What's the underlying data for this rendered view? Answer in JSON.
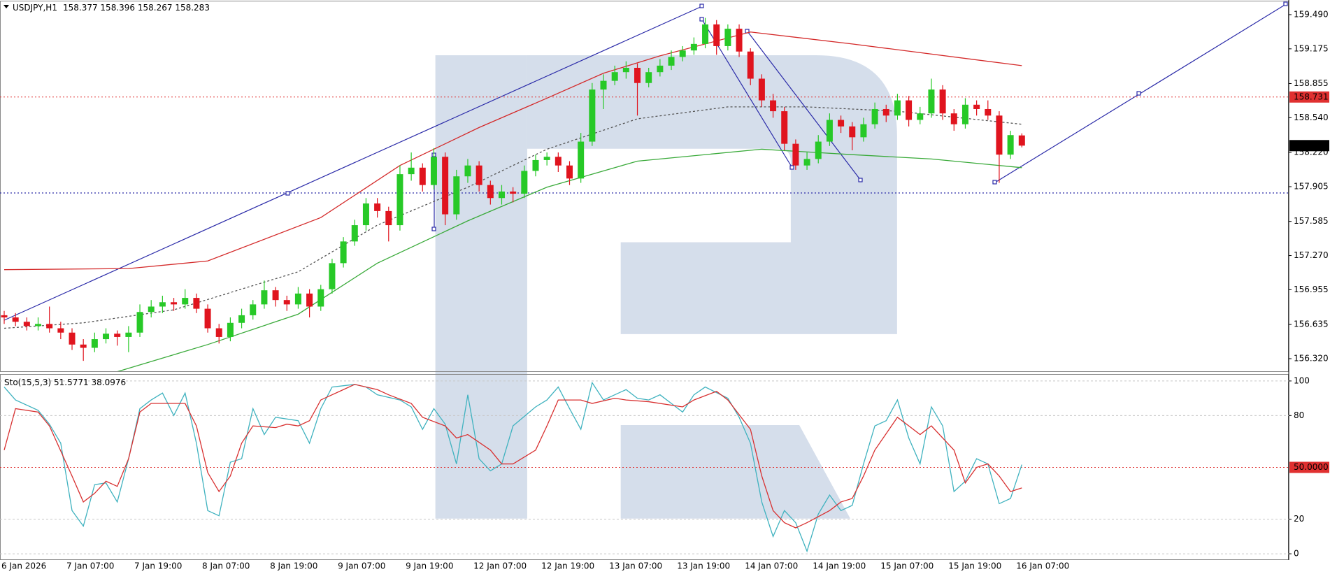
{
  "chart_data": [
    {
      "type": "candlestick",
      "title": "USDJPY,H1",
      "categories": [
        "6 Jan 2026",
        null,
        null,
        null,
        null,
        null,
        "7 Jan 07:00",
        null,
        null,
        null,
        null,
        null,
        "7 Jan 19:00",
        null,
        null,
        null,
        null,
        null,
        "8 Jan 07:00",
        null,
        null,
        null,
        null,
        null,
        "8 Jan 19:00",
        null,
        null,
        null,
        null,
        null,
        "9 Jan 07:00",
        null,
        null,
        null,
        null,
        null,
        "9 Jan 19:00",
        null,
        null,
        null,
        null,
        null,
        "12 Jan 07:00",
        null,
        null,
        null,
        null,
        null,
        "12 Jan 19:00",
        null,
        null,
        null,
        null,
        null,
        "13 Jan 07:00",
        null,
        null,
        null,
        null,
        null,
        "13 Jan 19:00",
        null,
        null,
        null,
        null,
        null,
        "14 Jan 07:00",
        null,
        null,
        null,
        null,
        null,
        "14 Jan 19:00",
        null,
        null,
        null,
        null,
        null,
        "15 Jan 07:00",
        null,
        null,
        null,
        null,
        null,
        "15 Jan 19:00",
        null,
        null,
        null,
        null,
        null,
        "16 Jan 07:00"
      ],
      "ohlc": [
        [
          156.72,
          156.76,
          156.64,
          156.7
        ],
        [
          156.7,
          156.74,
          156.62,
          156.66
        ],
        [
          156.66,
          156.7,
          156.58,
          156.62
        ],
        [
          156.62,
          156.7,
          156.58,
          156.64
        ],
        [
          156.64,
          156.8,
          156.56,
          156.6
        ],
        [
          156.6,
          156.66,
          156.5,
          156.56
        ],
        [
          156.56,
          156.6,
          156.4,
          156.45
        ],
        [
          156.45,
          156.5,
          156.3,
          156.42
        ],
        [
          156.42,
          156.56,
          156.38,
          156.5
        ],
        [
          156.5,
          156.6,
          156.46,
          156.55
        ],
        [
          156.55,
          156.58,
          156.44,
          156.52
        ],
        [
          156.52,
          156.62,
          156.38,
          156.56
        ],
        [
          156.56,
          156.82,
          156.52,
          156.75
        ],
        [
          156.75,
          156.86,
          156.7,
          156.8
        ],
        [
          156.8,
          156.9,
          156.74,
          156.84
        ],
        [
          156.84,
          156.88,
          156.76,
          156.82
        ],
        [
          156.82,
          156.96,
          156.78,
          156.88
        ],
        [
          156.88,
          156.92,
          156.74,
          156.78
        ],
        [
          156.78,
          156.82,
          156.56,
          156.6
        ],
        [
          156.6,
          156.64,
          156.46,
          156.52
        ],
        [
          156.52,
          156.7,
          156.48,
          156.65
        ],
        [
          156.65,
          156.78,
          156.6,
          156.72
        ],
        [
          156.72,
          156.86,
          156.68,
          156.82
        ],
        [
          156.82,
          157.04,
          156.78,
          156.95
        ],
        [
          156.95,
          156.98,
          156.8,
          156.86
        ],
        [
          156.86,
          156.9,
          156.76,
          156.82
        ],
        [
          156.82,
          156.98,
          156.78,
          156.92
        ],
        [
          156.92,
          156.96,
          156.7,
          156.8
        ],
        [
          156.8,
          157.0,
          156.76,
          156.96
        ],
        [
          156.96,
          157.24,
          156.92,
          157.2
        ],
        [
          157.2,
          157.44,
          157.16,
          157.4
        ],
        [
          157.4,
          157.6,
          157.36,
          157.55
        ],
        [
          157.55,
          157.8,
          157.5,
          157.75
        ],
        [
          157.75,
          157.8,
          157.62,
          157.68
        ],
        [
          157.68,
          157.72,
          157.4,
          157.55
        ],
        [
          157.55,
          158.1,
          157.5,
          158.02
        ],
        [
          158.02,
          158.22,
          157.96,
          158.08
        ],
        [
          158.08,
          158.12,
          157.86,
          157.92
        ],
        [
          157.92,
          158.26,
          157.88,
          158.18
        ],
        [
          158.18,
          158.22,
          157.55,
          157.65
        ],
        [
          157.65,
          158.06,
          157.6,
          158.0
        ],
        [
          158.0,
          158.16,
          157.94,
          158.1
        ],
        [
          158.1,
          158.14,
          157.86,
          157.92
        ],
        [
          157.92,
          157.96,
          157.74,
          157.8
        ],
        [
          157.8,
          157.92,
          157.74,
          157.86
        ],
        [
          157.86,
          157.9,
          157.76,
          157.84
        ],
        [
          157.84,
          158.1,
          157.8,
          158.05
        ],
        [
          158.05,
          158.2,
          158.0,
          158.15
        ],
        [
          158.15,
          158.22,
          158.1,
          158.18
        ],
        [
          158.18,
          158.22,
          158.04,
          158.1
        ],
        [
          158.1,
          158.14,
          157.92,
          157.98
        ],
        [
          157.98,
          158.4,
          157.94,
          158.32
        ],
        [
          158.32,
          158.86,
          158.28,
          158.8
        ],
        [
          158.8,
          158.94,
          158.62,
          158.88
        ],
        [
          158.88,
          159.02,
          158.84,
          158.96
        ],
        [
          158.96,
          159.06,
          158.9,
          159.0
        ],
        [
          159.0,
          159.04,
          158.56,
          158.86
        ],
        [
          158.86,
          159.0,
          158.82,
          158.96
        ],
        [
          158.96,
          159.08,
          158.92,
          159.02
        ],
        [
          159.02,
          159.16,
          158.98,
          159.1
        ],
        [
          159.1,
          159.2,
          159.06,
          159.16
        ],
        [
          159.16,
          159.28,
          159.12,
          159.22
        ],
        [
          159.22,
          159.46,
          159.18,
          159.4
        ],
        [
          159.4,
          159.44,
          159.12,
          159.2
        ],
        [
          159.2,
          159.4,
          159.16,
          159.36
        ],
        [
          159.36,
          159.4,
          159.1,
          159.15
        ],
        [
          159.15,
          159.18,
          158.84,
          158.9
        ],
        [
          158.9,
          158.94,
          158.64,
          158.7
        ],
        [
          158.7,
          158.76,
          158.54,
          158.6
        ],
        [
          158.6,
          158.64,
          158.24,
          158.3
        ],
        [
          158.3,
          158.34,
          158.06,
          158.1
        ],
        [
          158.1,
          158.22,
          158.06,
          158.16
        ],
        [
          158.16,
          158.38,
          158.12,
          158.32
        ],
        [
          158.32,
          158.58,
          158.28,
          158.52
        ],
        [
          158.52,
          158.56,
          158.4,
          158.46
        ],
        [
          158.46,
          158.5,
          158.24,
          158.36
        ],
        [
          158.36,
          158.54,
          158.32,
          158.48
        ],
        [
          158.48,
          158.68,
          158.44,
          158.62
        ],
        [
          158.62,
          158.66,
          158.5,
          158.56
        ],
        [
          158.56,
          158.76,
          158.52,
          158.7
        ],
        [
          158.7,
          158.74,
          158.46,
          158.52
        ],
        [
          158.52,
          158.64,
          158.48,
          158.58
        ],
        [
          158.58,
          158.9,
          158.54,
          158.8
        ],
        [
          158.8,
          158.84,
          158.52,
          158.58
        ],
        [
          158.58,
          158.62,
          158.42,
          158.48
        ],
        [
          158.48,
          158.72,
          158.44,
          158.66
        ],
        [
          158.66,
          158.7,
          158.56,
          158.62
        ],
        [
          158.62,
          158.7,
          158.52,
          158.56
        ],
        [
          158.56,
          158.6,
          157.94,
          158.2
        ],
        [
          158.2,
          158.42,
          158.16,
          158.38
        ],
        [
          158.377,
          158.396,
          158.267,
          158.283
        ]
      ],
      "up_color": "#27c927",
      "down_color": "#e0141e",
      "overlays": [
        {
          "color": "#d42a2a",
          "dash": false,
          "x": [
            0,
            11,
            18,
            28,
            35,
            42,
            48,
            53,
            58,
            66,
            75,
            90
          ],
          "values": [
            157.14,
            157.15,
            157.22,
            157.62,
            158.1,
            158.45,
            158.72,
            158.95,
            159.11,
            159.33,
            159.22,
            159.02
          ]
        },
        {
          "color": "#555555",
          "dash": true,
          "x": [
            0,
            7,
            15,
            26,
            33,
            41,
            48,
            56,
            64,
            71,
            79,
            90
          ],
          "values": [
            156.6,
            156.65,
            156.77,
            157.12,
            157.55,
            157.9,
            158.25,
            158.53,
            158.64,
            158.64,
            158.6,
            158.48
          ]
        },
        {
          "color": "#3aaa3a",
          "dash": false,
          "x": [
            10,
            18,
            26,
            33,
            41,
            48,
            56,
            67,
            75,
            82,
            90
          ],
          "values": [
            156.2,
            156.45,
            156.73,
            157.2,
            157.59,
            157.9,
            158.14,
            158.25,
            158.2,
            158.16,
            158.08
          ]
        }
      ],
      "levels": [
        158.731
      ],
      "level_color": "#e03030",
      "ylim": [
        156.204,
        159.612
      ],
      "yticks": [
        {
          "value": 159.49,
          "label": "159.490"
        },
        159.175,
        158.855,
        {
          "value": 158.54,
          "label": "158.540"
        },
        {
          "value": 158.22,
          "label": "158.220"
        },
        157.905,
        157.585,
        {
          "value": 157.27,
          "label": "157.270"
        },
        156.955,
        156.635,
        {
          "value": 156.32,
          "label": "156.320"
        }
      ],
      "grid": false
    },
    {
      "type": "line",
      "title": "Sto(15,5,3)",
      "series": [
        {
          "color": "#3fb2bf",
          "x": [
            0,
            1,
            3,
            4,
            5,
            6,
            7,
            8,
            9,
            10,
            11,
            12,
            13,
            14,
            15,
            16,
            17,
            18,
            19,
            20,
            21,
            22,
            23,
            24,
            26,
            27,
            28,
            29,
            31,
            32,
            33,
            35,
            36,
            37,
            38,
            39,
            40,
            41,
            42,
            43,
            44,
            45,
            47,
            48,
            49,
            50,
            51,
            52,
            53,
            55,
            56,
            57,
            58,
            59,
            60,
            61,
            62,
            64,
            65,
            66,
            67,
            68,
            69,
            70,
            71,
            72,
            73,
            74,
            75,
            76,
            77,
            78,
            79,
            80,
            81,
            82,
            83,
            84,
            85,
            86,
            87,
            88,
            89,
            90
          ],
          "values": [
            96.5,
            89,
            83,
            75,
            64,
            25,
            16,
            40,
            41,
            30,
            55,
            84,
            89,
            93,
            80,
            93,
            64,
            25,
            22,
            53,
            55,
            84,
            69,
            79,
            77,
            64,
            84,
            96.5,
            98,
            96.5,
            92,
            89,
            85,
            72,
            84,
            75,
            52,
            92,
            55,
            48,
            52,
            74,
            85,
            89,
            96.5,
            84,
            72,
            99,
            89,
            95,
            90,
            89,
            92,
            87,
            82,
            92,
            96.5,
            90,
            79,
            64,
            30,
            10,
            25,
            18,
            1.5,
            23,
            34,
            25,
            28,
            52,
            74,
            77,
            89,
            67,
            52,
            85,
            74,
            36,
            42,
            55,
            52,
            29,
            32,
            51.5771
          ]
        },
        {
          "color": "#d83030",
          "x": [
            0,
            1,
            3,
            4,
            6,
            7,
            8,
            9,
            10,
            11,
            12,
            13,
            15,
            16,
            17,
            18,
            19,
            20,
            21,
            22,
            24,
            25,
            26,
            27,
            28,
            30,
            31,
            33,
            34,
            36,
            37,
            39,
            40,
            41,
            43,
            44,
            45,
            47,
            48,
            49,
            51,
            52,
            54,
            55,
            57,
            60,
            61,
            63,
            64,
            66,
            67,
            68,
            69,
            70,
            71,
            73,
            74,
            75,
            76,
            77,
            79,
            80,
            81,
            82,
            84,
            85,
            86,
            87,
            88,
            89,
            90
          ],
          "values": [
            60,
            84,
            82,
            74,
            45,
            30,
            35,
            42,
            39,
            55,
            82,
            87,
            87,
            87,
            74,
            47,
            36,
            45,
            64,
            74,
            73,
            75,
            74,
            77,
            89,
            95,
            98,
            95,
            92,
            87,
            79,
            74,
            67,
            69,
            60,
            52,
            52,
            60,
            74,
            89,
            89,
            87,
            90,
            89,
            88,
            85,
            89,
            94,
            89,
            72,
            45,
            25,
            18,
            15,
            18,
            25,
            30,
            32,
            45,
            60,
            79,
            74,
            69,
            74,
            60,
            41,
            50,
            52,
            45,
            36,
            38.0976
          ]
        }
      ],
      "levels": [
        {
          "value": 50,
          "label": "50.0000"
        }
      ],
      "level_color": "#e03030",
      "ylim": [
        -3.2,
        103.6
      ],
      "yticks": [
        0,
        20,
        80,
        100
      ],
      "grid": true
    }
  ]
}
